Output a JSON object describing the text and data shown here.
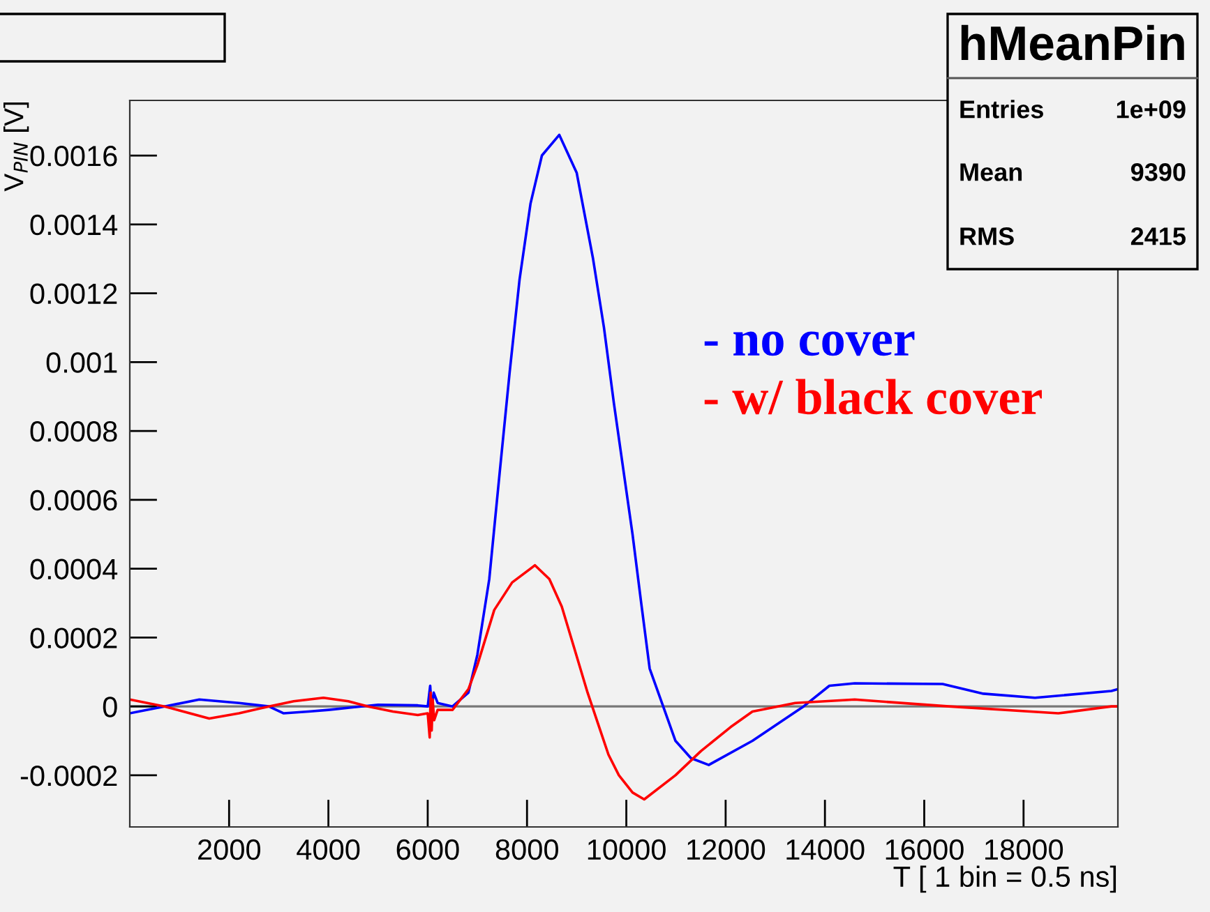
{
  "chart_data": {
    "type": "line",
    "xlabel": "T [ 1 bin = 0.5 ns]",
    "ylabel": "V$_{PIN}$ [V]",
    "xlim": [
      0,
      19900
    ],
    "xticks": [
      2000,
      4000,
      6000,
      8000,
      10000,
      12000,
      14000,
      16000,
      18000
    ],
    "ylim": [
      -0.00035,
      0.00176
    ],
    "yticks": [
      -0.0002,
      0,
      0.0002,
      0.0004,
      0.0006,
      0.0008,
      0.001,
      0.0012,
      0.0014,
      0.0016
    ],
    "grid": false,
    "legend": "top right",
    "marker": "none",
    "line_style": "solid",
    "ref_lines": [
      {
        "axis": "y",
        "value": 0,
        "color": "#777777"
      }
    ],
    "annotations": [
      "hMeanPin",
      "Entries",
      "1e+09",
      "Mean",
      "9390",
      "RMS",
      "2415"
    ],
    "series": [
      {
        "name": "- no cover",
        "color": "#0000ff",
        "x": [
          0,
          700,
          1400,
          2200,
          2800,
          3100,
          3600,
          4000,
          5000,
          5800,
          6000,
          6050,
          6080,
          6120,
          6200,
          6500,
          6820,
          7000,
          7240,
          7450,
          7650,
          7850,
          8070,
          8300,
          8650,
          9000,
          9330,
          9550,
          9750,
          10125,
          10300,
          10470,
          10990,
          11300,
          11660,
          12540,
          13570,
          14090,
          14600,
          16370,
          17190,
          18230,
          19770,
          19900
        ],
        "values": [
          -2e-05,
          0,
          2e-05,
          1e-05,
          0,
          -2e-05,
          -1.5e-05,
          -1e-05,
          5e-06,
          3e-06,
          0,
          6e-05,
          -1e-05,
          4e-05,
          1e-05,
          0,
          4e-05,
          0.00015,
          0.00037,
          0.00068,
          0.00097,
          0.00124,
          0.00146,
          0.0016,
          0.00166,
          0.00155,
          0.0013,
          0.0011,
          0.00088,
          0.0005,
          0.0003,
          0.00011,
          -0.0001,
          -0.00015,
          -0.00017,
          -0.0001,
          0,
          6e-05,
          6.7e-05,
          6.5e-05,
          3.7e-05,
          2.5e-05,
          4.5e-05,
          5e-05
        ]
      },
      {
        "name": "- w/ black cover",
        "color": "#ff0000",
        "x": [
          0,
          700,
          1600,
          2200,
          2800,
          3300,
          3900,
          4400,
          4800,
          5300,
          5800,
          6000,
          6040,
          6060,
          6080,
          6100,
          6130,
          6200,
          6500,
          6820,
          7000,
          7340,
          7700,
          8160,
          8450,
          8700,
          8950,
          9220,
          9430,
          9640,
          9850,
          10125,
          10360,
          10990,
          11500,
          12100,
          12540,
          13400,
          14600,
          16500,
          18700,
          19770,
          19900
        ],
        "values": [
          2e-05,
          0,
          -3.5e-05,
          -2e-05,
          0,
          1.5e-05,
          2.5e-05,
          1.5e-05,
          0,
          -1.5e-05,
          -2.5e-05,
          -2e-05,
          -9e-05,
          4e-05,
          -7e-05,
          2e-05,
          -4e-05,
          -1e-05,
          -1e-05,
          5e-05,
          0.00012,
          0.00028,
          0.00036,
          0.00041,
          0.00037,
          0.00029,
          0.00017,
          4e-05,
          -5e-05,
          -0.00014,
          -0.0002,
          -0.00025,
          -0.00027,
          -0.0002,
          -0.00013,
          -6e-05,
          -1.5e-05,
          1e-05,
          2e-05,
          0,
          -2e-05,
          0,
          0
        ]
      }
    ]
  }
}
